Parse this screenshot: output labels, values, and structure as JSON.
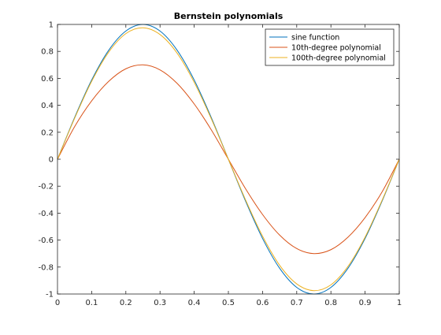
{
  "chart_data": {
    "type": "line",
    "title": "Bernstein polynomials",
    "xlabel": "",
    "ylabel": "",
    "xlim": [
      0,
      1
    ],
    "ylim": [
      -1,
      1
    ],
    "xticks": [
      0,
      0.1,
      0.2,
      0.3,
      0.4,
      0.5,
      0.6,
      0.7,
      0.8,
      0.9,
      1
    ],
    "xtick_labels": [
      "0",
      "0.1",
      "0.2",
      "0.3",
      "0.4",
      "0.5",
      "0.6",
      "0.7",
      "0.8",
      "0.9",
      "1"
    ],
    "yticks": [
      1,
      0.8,
      0.6,
      0.4,
      0.2,
      0,
      -0.2,
      -0.4,
      -0.6,
      -0.8,
      -1
    ],
    "ytick_labels": [
      "1",
      "0.8",
      "0.6",
      "0.4",
      "0.2",
      "0",
      "-0.2",
      "-0.4",
      "-0.6",
      "-0.8",
      "-1"
    ],
    "grid": false,
    "legend_position": "top-right",
    "x": [
      0,
      0.05,
      0.1,
      0.15,
      0.2,
      0.25,
      0.3,
      0.35,
      0.4,
      0.45,
      0.5,
      0.55,
      0.6,
      0.65,
      0.7,
      0.75,
      0.8,
      0.85,
      0.9,
      0.95,
      1
    ],
    "series": [
      {
        "name": "sine function",
        "color": "#0072BD",
        "values": [
          0,
          0.309,
          0.588,
          0.809,
          0.951,
          1.0,
          0.951,
          0.809,
          0.588,
          0.309,
          0,
          -0.309,
          -0.588,
          -0.809,
          -0.951,
          -1.0,
          -0.951,
          -0.809,
          -0.588,
          -0.309,
          0
        ]
      },
      {
        "name": "10th-degree polynomial",
        "color": "#D95319",
        "values": [
          0,
          0.241,
          0.433,
          0.578,
          0.671,
          0.7,
          0.663,
          0.563,
          0.41,
          0.218,
          0,
          -0.218,
          -0.41,
          -0.563,
          -0.663,
          -0.7,
          -0.671,
          -0.578,
          -0.433,
          -0.241,
          0
        ]
      },
      {
        "name": "100th-degree polynomial",
        "color": "#EDB120",
        "values": [
          0,
          0.303,
          0.578,
          0.795,
          0.932,
          0.975,
          0.925,
          0.787,
          0.571,
          0.3,
          0,
          -0.3,
          -0.571,
          -0.787,
          -0.925,
          -0.975,
          -0.932,
          -0.795,
          -0.578,
          -0.303,
          0
        ]
      }
    ]
  }
}
